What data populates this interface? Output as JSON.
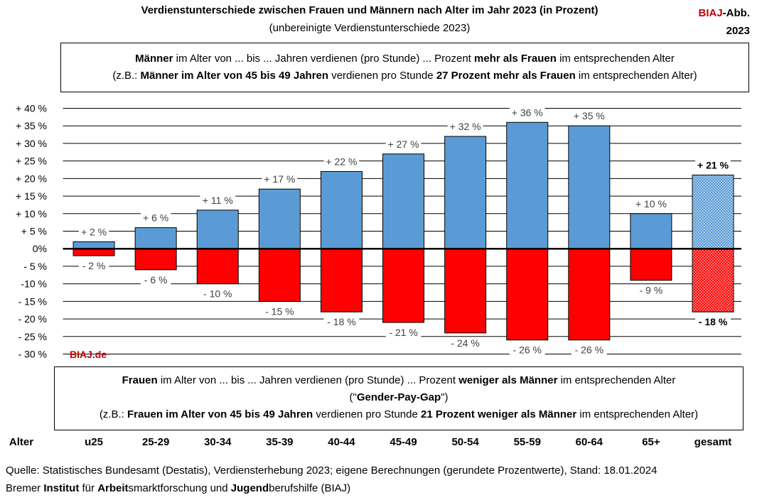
{
  "header": {
    "title": "Verdienstunterschiede zwischen Frauen und Männern nach Alter im Jahr 2023 (in Prozent)",
    "subtitle": "(unbereinigte Verdienstunterschiede 2023)",
    "badge_red": "BIAJ",
    "badge_rest": "-Abb.",
    "badge_year": "2023"
  },
  "top_box": {
    "line1": [
      {
        "t": "Männer",
        "b": true
      },
      {
        "t": " im Alter von ... bis ... Jahren verdienen (pro Stunde) ... Prozent ",
        "b": false
      },
      {
        "t": "mehr als Frauen",
        "b": true
      },
      {
        "t": " im entsprechenden Alter",
        "b": false
      }
    ],
    "line2": [
      {
        "t": "(z.B.: ",
        "b": false
      },
      {
        "t": "Männer im Alter von 45 bis 49 Jahren",
        "b": true
      },
      {
        "t": " verdienen pro Stunde ",
        "b": false
      },
      {
        "t": "27 Prozent mehr als Frauen",
        "b": true
      },
      {
        "t": " im entsprechenden Alter)",
        "b": false
      }
    ]
  },
  "bottom_box": {
    "line1": [
      {
        "t": "Frauen",
        "b": true
      },
      {
        "t": " im Alter von ... bis ... Jahren verdienen (pro Stunde) ... Prozent ",
        "b": false
      },
      {
        "t": "weniger als Männer",
        "b": true
      },
      {
        "t": " im entsprechenden Alter",
        "b": false
      }
    ],
    "line2": [
      {
        "t": "(\"",
        "b": false
      },
      {
        "t": "Gender-Pay-Gap",
        "b": true
      },
      {
        "t": "\")",
        "b": false
      }
    ],
    "line3": [
      {
        "t": "(z.B.: ",
        "b": false
      },
      {
        "t": "Frauen im Alter von 45 bis 49 Jahren",
        "b": true
      },
      {
        "t": " verdienen pro Stunde ",
        "b": false
      },
      {
        "t": "21 Prozent weniger als Männer",
        "b": true
      },
      {
        "t": " im entsprechenden Alter)",
        "b": false
      }
    ]
  },
  "watermark": "BIAJ.de",
  "source": {
    "line1": "Quelle: Statistisches Bundesamt (Destatis), Verdiensterhebung 2023; eigene Berechnungen (gerundete Prozentwerte), Stand: 18.01.2024",
    "line2": [
      {
        "t": "Bremer ",
        "b": false
      },
      {
        "t": "Institut",
        "b": true
      },
      {
        "t": " für ",
        "b": false
      },
      {
        "t": "Arbeit",
        "b": true
      },
      {
        "t": "smarktforschung und ",
        "b": false
      },
      {
        "t": "Jugend",
        "b": true
      },
      {
        "t": "berufshilfe (BIAJ)",
        "b": false
      }
    ]
  },
  "chart_data": {
    "type": "bar",
    "x_axis_title": "Alter",
    "categories": [
      "u25",
      "25-29",
      "30-34",
      "35-39",
      "40-44",
      "45-49",
      "50-54",
      "55-59",
      "60-64",
      "65+",
      "gesamt"
    ],
    "series": [
      {
        "values": [
          2,
          6,
          11,
          17,
          22,
          27,
          32,
          36,
          35,
          10,
          21
        ],
        "labels": [
          "+ 2 %",
          "+ 6 %",
          "+ 11 %",
          "+ 17 %",
          "+ 22 %",
          "+ 27 %",
          "+ 32 %",
          "+ 36 %",
          "+ 35 %",
          "+ 10 %",
          "+ 21 %"
        ],
        "color": "#5b9bd5"
      },
      {
        "values": [
          -2,
          -6,
          -10,
          -15,
          -18,
          -21,
          -24,
          -26,
          -26,
          -9,
          -18
        ],
        "labels": [
          "- 2 %",
          "- 6 %",
          "- 10 %",
          "- 15 %",
          "- 18 %",
          "- 21 %",
          "- 24 %",
          "- 26 %",
          "- 26 %",
          "- 9 %",
          "- 18 %"
        ],
        "color": "#ff0000"
      }
    ],
    "highlight_category": "gesamt",
    "y_ticks": [
      40,
      35,
      30,
      25,
      20,
      15,
      10,
      5,
      0,
      -5,
      -10,
      -15,
      -20,
      -25,
      -30
    ],
    "y_tick_labels": [
      "+ 40 %",
      "+ 35 %",
      "+ 30 %",
      "+ 25 %",
      "+ 20 %",
      "+ 15 %",
      "+ 10 %",
      "+ 5 %",
      "0%",
      "- 5 %",
      "-10 %",
      "- 15 %",
      "- 20 %",
      "- 25 %",
      "- 30 %"
    ],
    "ylim": [
      -30,
      40
    ],
    "grid": true,
    "legend": "none"
  }
}
